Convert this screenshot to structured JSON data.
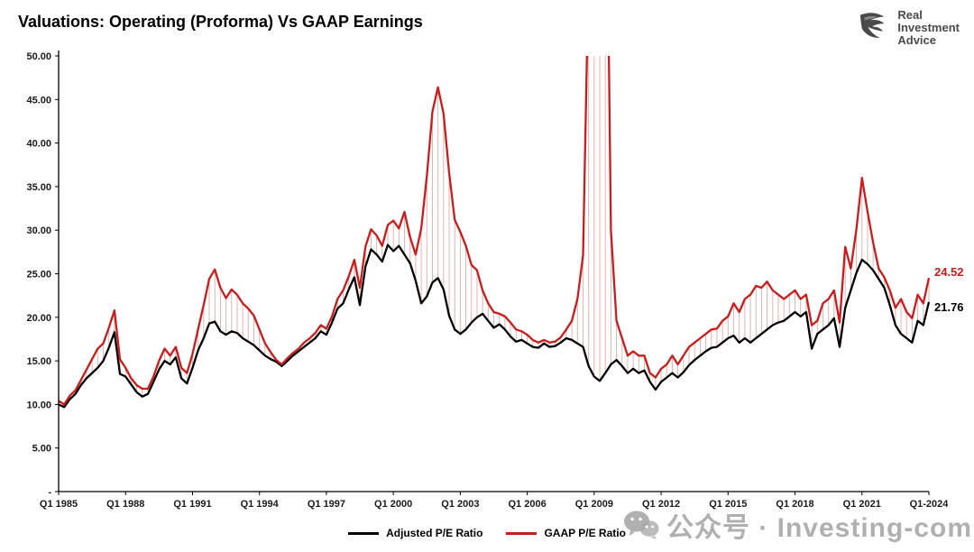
{
  "header": {
    "title": "Valuations: Operating (Proforma) Vs GAAP Earnings",
    "logo": {
      "line1": "Real",
      "line2": "Investment",
      "line3": "Advice"
    }
  },
  "watermark": {
    "text": "公众号 · Investing-com"
  },
  "chart_data": {
    "type": "line",
    "title": "Valuations: Operating (Proforma) Vs GAAP Earnings",
    "xlabel": "",
    "ylabel": "",
    "ylim": [
      0,
      50
    ],
    "grid": false,
    "legend_position": "bottom-center",
    "y_tick_labels": [
      "-",
      "5.00",
      "10.00",
      "15.00",
      "20.00",
      "25.00",
      "30.00",
      "35.00",
      "40.00",
      "45.00",
      "50.00"
    ],
    "x_tick_labels": [
      "Q1 1985",
      "Q1 1988",
      "Q1 1991",
      "Q1 1994",
      "Q1 1997",
      "Q1 2000",
      "Q1 2003",
      "Q1 2006",
      "Q1 2009",
      "Q1 2012",
      "Q1 2015",
      "Q1 2018",
      "Q1 2021",
      "Q1-2024"
    ],
    "x_ticks_every_n_points": 12,
    "fill_between_series": true,
    "fill_color": "#c0392b",
    "series": [
      {
        "name": "Adjusted P/E Ratio",
        "color": "#000000",
        "end_label": "21.76",
        "values": [
          10.0,
          9.7,
          10.6,
          11.2,
          12.2,
          13.0,
          13.6,
          14.2,
          15.0,
          16.5,
          18.3,
          13.5,
          13.2,
          12.3,
          11.4,
          10.9,
          11.2,
          12.6,
          14.0,
          15.0,
          14.6,
          15.4,
          13.0,
          12.4,
          14.2,
          16.2,
          17.6,
          19.3,
          19.5,
          18.4,
          18.0,
          18.4,
          18.2,
          17.6,
          17.2,
          16.8,
          16.2,
          15.6,
          15.2,
          14.9,
          14.4,
          15.0,
          15.6,
          16.1,
          16.6,
          17.1,
          17.6,
          18.4,
          18.0,
          19.4,
          21.0,
          21.6,
          23.2,
          24.6,
          21.4,
          25.8,
          27.8,
          27.2,
          26.4,
          28.3,
          27.6,
          28.2,
          27.2,
          26.2,
          24.2,
          21.6,
          22.4,
          24.0,
          24.5,
          23.2,
          20.2,
          18.6,
          18.1,
          18.6,
          19.4,
          20.0,
          20.4,
          19.6,
          18.8,
          19.2,
          18.6,
          17.8,
          17.2,
          17.4,
          17.0,
          16.6,
          16.5,
          17.0,
          16.6,
          16.7,
          17.1,
          17.6,
          17.4,
          17.0,
          16.6,
          14.4,
          13.2,
          12.7,
          13.6,
          14.6,
          15.1,
          14.4,
          13.6,
          14.1,
          13.6,
          13.9,
          12.6,
          11.7,
          12.6,
          13.1,
          13.6,
          13.1,
          13.7,
          14.5,
          15.1,
          15.6,
          16.1,
          16.5,
          16.6,
          17.1,
          17.6,
          17.9,
          17.1,
          17.6,
          17.1,
          17.6,
          18.1,
          18.6,
          19.1,
          19.4,
          19.6,
          20.1,
          20.6,
          20.1,
          20.6,
          16.4,
          18.1,
          18.6,
          19.1,
          19.9,
          16.6,
          21.1,
          23.1,
          25.1,
          26.6,
          26.1,
          25.4,
          24.4,
          23.4,
          21.4,
          19.1,
          18.1,
          17.6,
          17.1,
          19.6,
          19.1,
          21.76
        ]
      },
      {
        "name": "GAAP P/E Ratio",
        "color": "#cc1b1b",
        "end_label": "24.52",
        "values": [
          10.4,
          10.0,
          11.0,
          11.6,
          12.8,
          14.0,
          15.2,
          16.4,
          17.0,
          18.8,
          20.8,
          15.2,
          14.2,
          13.0,
          12.2,
          11.8,
          11.8,
          13.2,
          15.0,
          16.4,
          15.6,
          16.6,
          14.2,
          13.6,
          15.8,
          18.6,
          21.4,
          24.4,
          25.5,
          23.4,
          22.2,
          23.2,
          22.6,
          21.6,
          21.0,
          20.2,
          18.6,
          17.0,
          16.0,
          15.1,
          14.6,
          15.3,
          15.9,
          16.4,
          17.1,
          17.6,
          18.2,
          19.1,
          18.7,
          20.1,
          22.1,
          23.1,
          24.7,
          26.6,
          23.4,
          28.1,
          30.1,
          29.4,
          28.2,
          30.6,
          31.1,
          30.2,
          32.1,
          29.2,
          27.2,
          30.2,
          36.2,
          43.6,
          46.4,
          43.4,
          36.6,
          31.2,
          29.8,
          28.2,
          26.0,
          25.4,
          23.1,
          21.6,
          20.6,
          20.4,
          20.1,
          19.4,
          18.6,
          18.4,
          18.0,
          17.4,
          17.1,
          17.4,
          17.1,
          17.2,
          17.7,
          18.6,
          19.6,
          22.1,
          27.1,
          60.0,
          110.0,
          122.0,
          85.0,
          30.0,
          19.6,
          17.6,
          15.6,
          16.1,
          15.6,
          15.6,
          13.6,
          13.1,
          14.1,
          14.6,
          15.6,
          14.6,
          15.6,
          16.6,
          17.1,
          17.6,
          18.1,
          18.6,
          18.7,
          19.6,
          20.1,
          21.6,
          20.6,
          22.1,
          22.6,
          23.6,
          23.4,
          24.1,
          23.1,
          22.6,
          22.1,
          22.6,
          23.1,
          22.1,
          22.6,
          19.1,
          19.6,
          21.6,
          22.1,
          23.1,
          19.4,
          28.1,
          25.6,
          30.1,
          36.0,
          32.1,
          28.6,
          25.6,
          24.6,
          23.1,
          21.1,
          22.1,
          20.6,
          19.9,
          22.6,
          21.6,
          24.52
        ]
      }
    ]
  }
}
